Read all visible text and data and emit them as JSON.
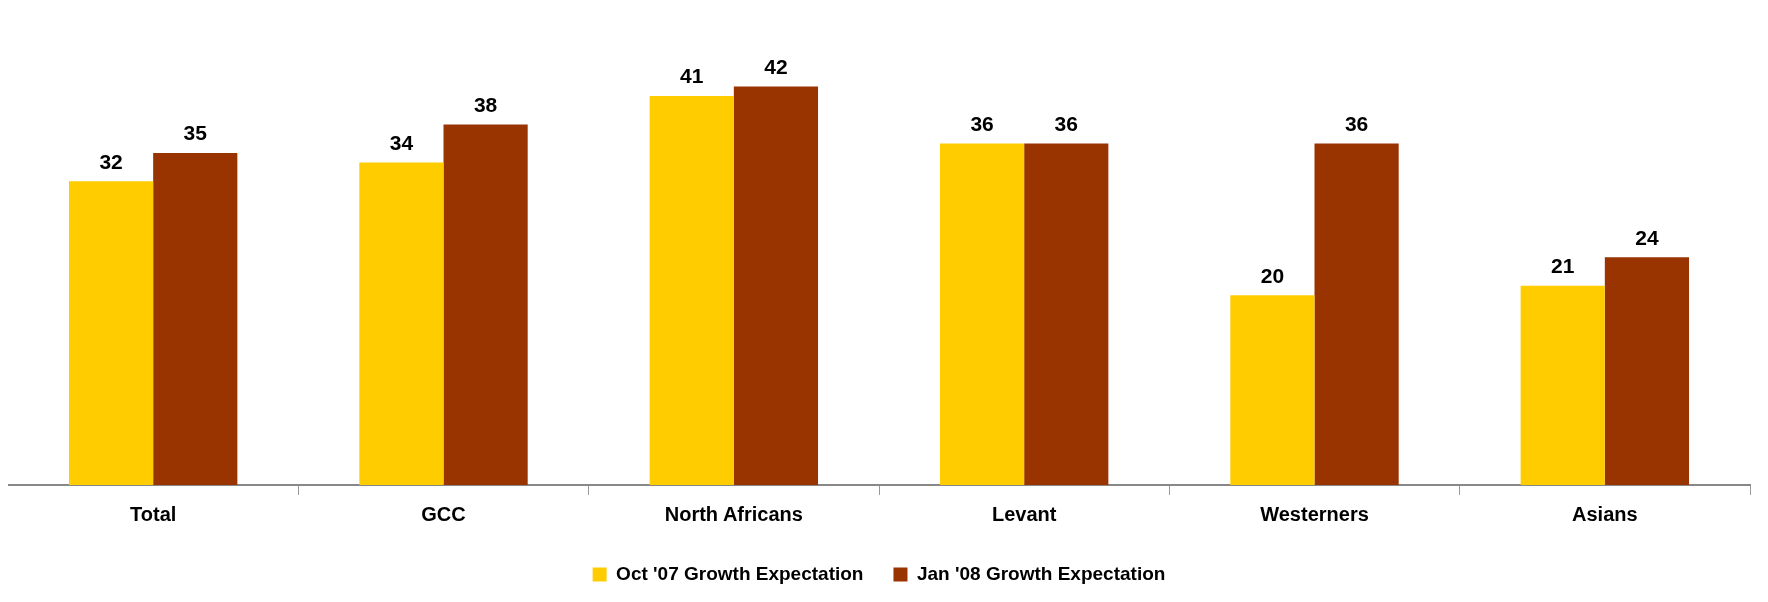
{
  "chart_data": {
    "type": "bar",
    "categories": [
      "Total",
      "GCC",
      "North Africans",
      "Levant",
      "Westerners",
      "Asians"
    ],
    "series": [
      {
        "name": "Oct '07 Growth Expectation",
        "color": "#ffcc00",
        "values": [
          32,
          34,
          41,
          36,
          20,
          21
        ]
      },
      {
        "name": "Jan '08 Growth Expectation",
        "color": "#993300",
        "values": [
          35,
          38,
          42,
          36,
          36,
          24
        ]
      }
    ],
    "data_labels": true,
    "legend": "bottom",
    "grid": false
  }
}
